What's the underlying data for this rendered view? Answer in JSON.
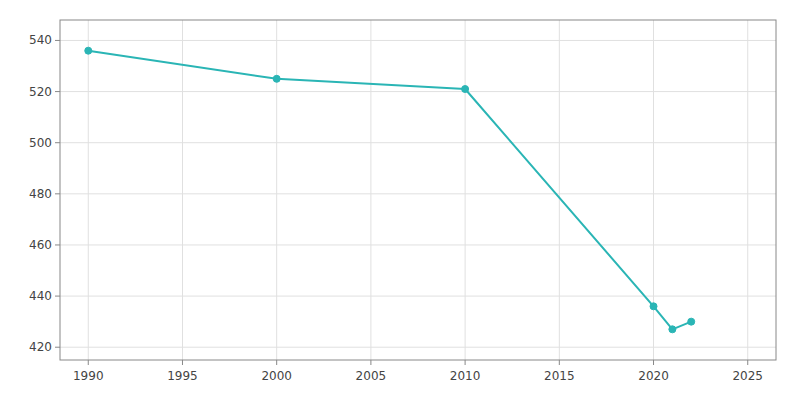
{
  "chart_data": {
    "type": "line",
    "x": [
      1990,
      2000,
      2010,
      2020,
      2021,
      2022
    ],
    "values": [
      536,
      525,
      521,
      436,
      427,
      430
    ],
    "color": "#2ab5b5",
    "marker": "circle",
    "xlim": [
      1988.5,
      2026.5
    ],
    "ylim": [
      415,
      548
    ],
    "xticks": [
      1990,
      1995,
      2000,
      2005,
      2010,
      2015,
      2020,
      2025
    ],
    "yticks": [
      420,
      440,
      460,
      480,
      500,
      520,
      540
    ],
    "grid": true
  }
}
